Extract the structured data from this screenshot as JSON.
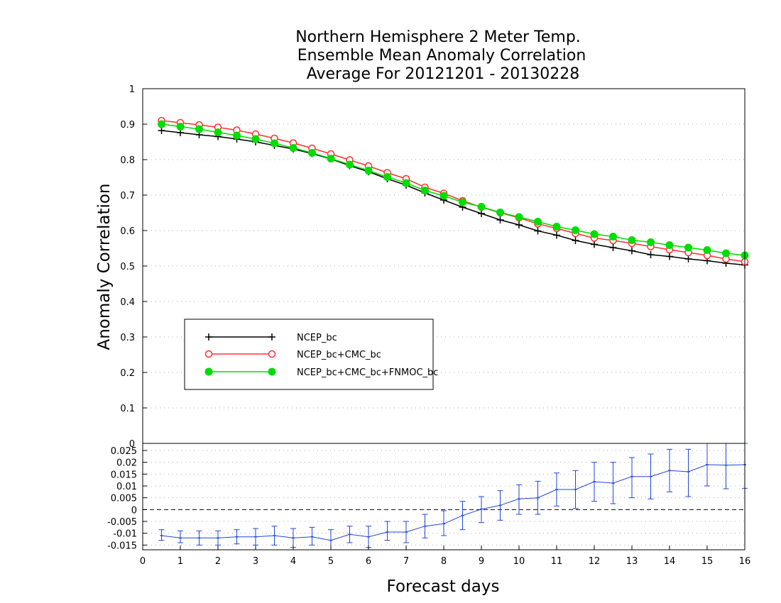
{
  "chart_data": {
    "type": "line",
    "title": [
      "Northern Hemisphere 2 Meter Temp.",
      "Ensemble Mean Anomaly Correlation",
      "Average For 20121201 - 20130228"
    ],
    "xlabel": "Forecast days",
    "ylabel": "Anomaly Correlation",
    "xlim": [
      0,
      16
    ],
    "xticks": [
      "0",
      "1",
      "2",
      "3",
      "4",
      "5",
      "6",
      "7",
      "8",
      "9",
      "10",
      "11",
      "12",
      "13",
      "14",
      "15",
      "16"
    ],
    "x": [
      0.5,
      1,
      1.5,
      2,
      2.5,
      3,
      3.5,
      4,
      4.5,
      5,
      5.5,
      6,
      6.5,
      7,
      7.5,
      8,
      8.5,
      9,
      9.5,
      10,
      10.5,
      11,
      11.5,
      12,
      12.5,
      13,
      13.5,
      14,
      14.5,
      15,
      15.5,
      16
    ],
    "top_panel": {
      "ylim": [
        0,
        1
      ],
      "yticks": [
        "0",
        "0.1",
        "0.2",
        "0.3",
        "0.4",
        "0.5",
        "0.6",
        "0.7",
        "0.8",
        "0.9",
        "1"
      ],
      "grid": true,
      "legend_position": "lower-left",
      "series": [
        {
          "name": "NCEP_bc",
          "color": "#000000",
          "marker": "plus",
          "values": [
            0.882,
            0.876,
            0.87,
            0.865,
            0.858,
            0.85,
            0.84,
            0.83,
            0.817,
            0.802,
            0.783,
            0.766,
            0.746,
            0.728,
            0.706,
            0.686,
            0.666,
            0.648,
            0.63,
            0.616,
            0.599,
            0.587,
            0.572,
            0.561,
            0.552,
            0.543,
            0.532,
            0.527,
            0.52,
            0.515,
            0.508,
            0.503
          ]
        },
        {
          "name": "NCEP_bc+CMC_bc",
          "color": "#ff3030",
          "marker": "open-circle",
          "values": [
            0.91,
            0.904,
            0.898,
            0.891,
            0.883,
            0.872,
            0.86,
            0.847,
            0.832,
            0.816,
            0.799,
            0.782,
            0.763,
            0.746,
            0.722,
            0.705,
            0.684,
            0.666,
            0.65,
            0.636,
            0.619,
            0.606,
            0.592,
            0.579,
            0.572,
            0.564,
            0.555,
            0.546,
            0.538,
            0.53,
            0.52,
            0.512
          ]
        },
        {
          "name": "NCEP_bc+CMC_bc+FNMOC_bc",
          "color": "#00dd00",
          "marker": "filled-circle",
          "values": [
            0.9,
            0.893,
            0.886,
            0.877,
            0.868,
            0.858,
            0.846,
            0.833,
            0.819,
            0.803,
            0.786,
            0.769,
            0.751,
            0.734,
            0.713,
            0.698,
            0.68,
            0.667,
            0.651,
            0.638,
            0.625,
            0.611,
            0.601,
            0.59,
            0.583,
            0.573,
            0.567,
            0.559,
            0.552,
            0.545,
            0.536,
            0.53
          ]
        }
      ]
    },
    "bottom_panel": {
      "ylim": [
        -0.017,
        0.028
      ],
      "yticks": [
        "-0.015",
        "-0.01",
        "-0.005",
        "0",
        "0.005",
        "0.01",
        "0.015",
        "0.02",
        "0.025"
      ],
      "grid": true,
      "color": "#2244dd",
      "values": [
        -0.011,
        -0.012,
        -0.012,
        -0.012,
        -0.0115,
        -0.0115,
        -0.011,
        -0.012,
        -0.0115,
        -0.013,
        -0.0105,
        -0.0115,
        -0.0095,
        -0.0095,
        -0.007,
        -0.006,
        -0.0025,
        0.0002,
        0.0018,
        0.0045,
        0.005,
        0.0085,
        0.0085,
        0.0118,
        0.0112,
        0.014,
        0.014,
        0.0165,
        0.016,
        0.019,
        0.0188,
        0.019
      ],
      "err_low": [
        -0.013,
        -0.014,
        -0.015,
        -0.015,
        -0.0145,
        -0.015,
        -0.015,
        -0.016,
        -0.015,
        -0.017,
        -0.014,
        -0.016,
        -0.013,
        -0.014,
        -0.012,
        -0.011,
        -0.0085,
        -0.0055,
        -0.0045,
        -0.002,
        -0.002,
        0.0015,
        0.0005,
        0.0035,
        0.0025,
        0.005,
        0.0045,
        0.0075,
        0.0055,
        0.01,
        0.0088,
        0.009
      ],
      "err_high": [
        -0.0085,
        -0.009,
        -0.009,
        -0.009,
        -0.0085,
        -0.008,
        -0.007,
        -0.008,
        -0.0075,
        -0.0085,
        -0.007,
        -0.007,
        -0.005,
        -0.005,
        -0.002,
        -0.0005,
        0.0035,
        0.0055,
        0.008,
        0.0105,
        0.012,
        0.0155,
        0.0165,
        0.02,
        0.02,
        0.022,
        0.0235,
        0.0255,
        0.0255,
        0.028,
        0.028,
        0.028
      ]
    }
  }
}
